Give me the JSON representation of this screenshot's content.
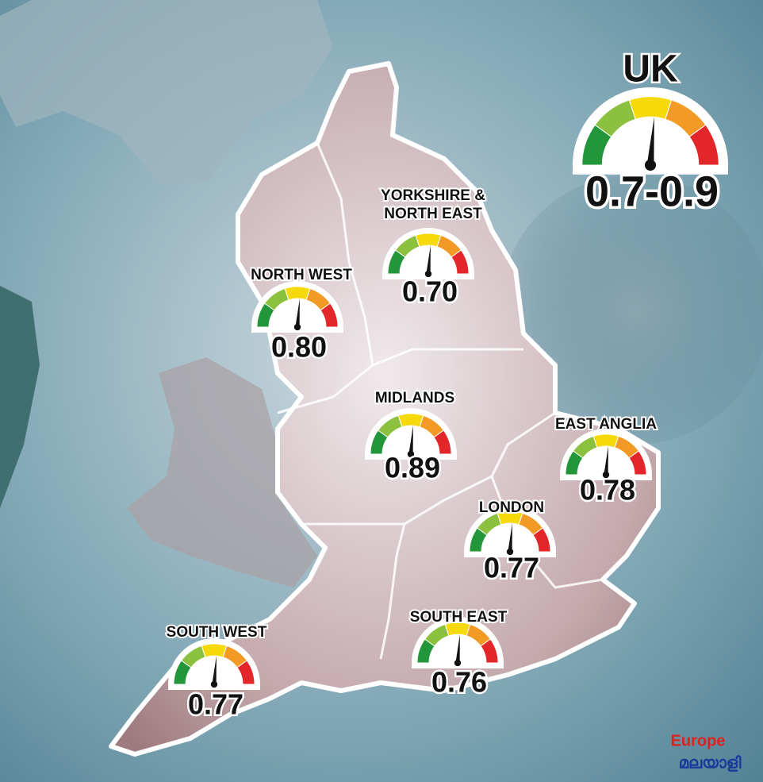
{
  "uk": {
    "title": "UK",
    "value": "0.7-0.9"
  },
  "regions": [
    {
      "label": [
        "YORKSHIRE &",
        "NORTH EAST"
      ],
      "value": "0.70"
    },
    {
      "label": [
        "NORTH WEST"
      ],
      "value": "0.80"
    },
    {
      "label": [
        "MIDLANDS"
      ],
      "value": "0.89"
    },
    {
      "label": [
        "EAST ANGLIA"
      ],
      "value": "0.78"
    },
    {
      "label": [
        "LONDON"
      ],
      "value": "0.77"
    },
    {
      "label": [
        "SOUTH EAST"
      ],
      "value": "0.76"
    },
    {
      "label": [
        "SOUTH WEST"
      ],
      "value": "0.77"
    }
  ],
  "logo": {
    "name": "Europe",
    "script": "മലയാളി"
  }
}
